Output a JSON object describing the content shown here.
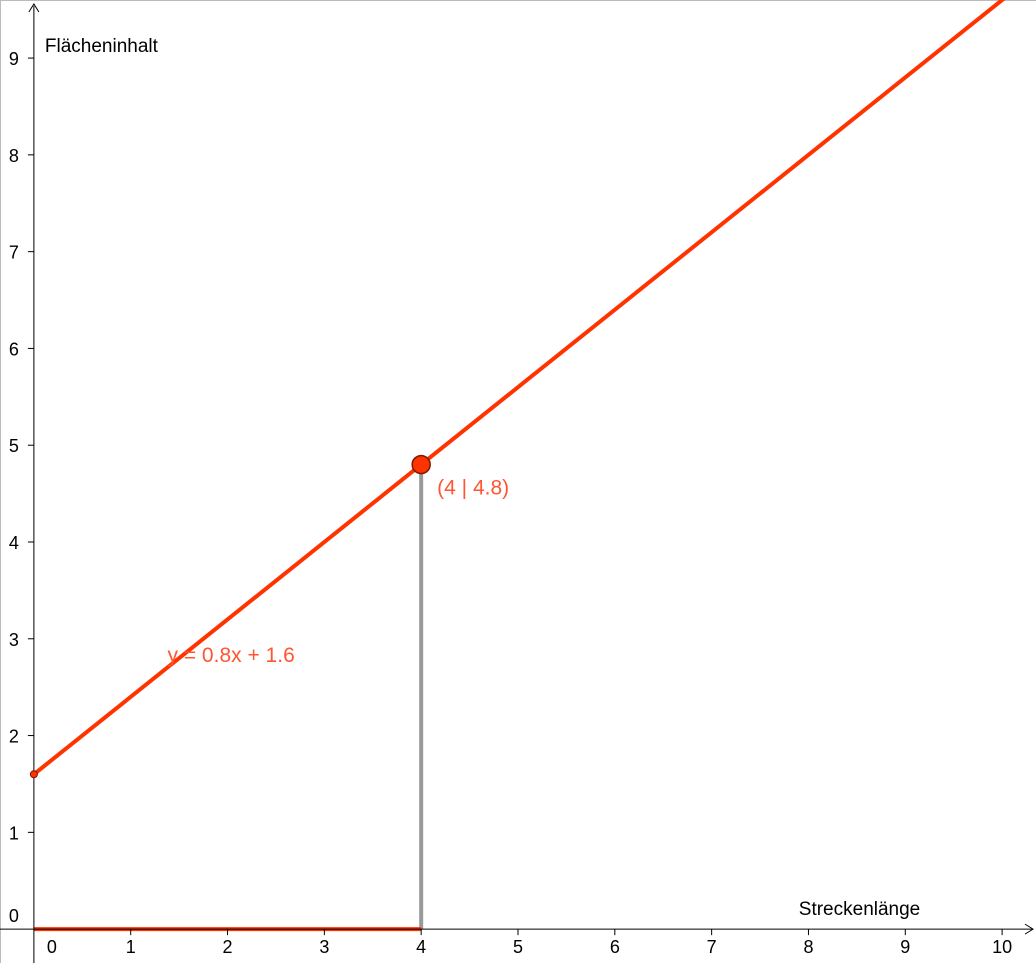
{
  "chart_data": {
    "type": "line",
    "xlabel": "Streckenlänge",
    "ylabel": "Flächeninhalt",
    "xlim": [
      -0.35,
      10.35
    ],
    "ylim": [
      -0.35,
      9.6
    ],
    "x_ticks": [
      0,
      1,
      2,
      3,
      4,
      5,
      6,
      7,
      8,
      9,
      10
    ],
    "y_ticks": [
      0,
      1,
      2,
      3,
      4,
      5,
      6,
      7,
      8,
      9
    ],
    "grid": false,
    "series": [
      {
        "equation_label": "y = 0.8x + 1.6",
        "slope": 0.8,
        "intercept": 1.6,
        "x_range": [
          0,
          10.35
        ],
        "color": "#ff3300"
      }
    ],
    "start_point": {
      "x": 0,
      "y": 1.6
    },
    "highlight_point": {
      "x": 4,
      "y": 4.8,
      "label": "(4 | 4.8)"
    },
    "vertical_segment": {
      "x": 4,
      "y_from": 0,
      "y_to": 4.8,
      "color": "#999999"
    },
    "horizontal_segment": {
      "x_from": 0,
      "x_to": 4,
      "y": 0,
      "color": "#ff3300"
    },
    "colors": {
      "line": "#ff3300",
      "label": "#ff5533",
      "point_fill": "#ff3300",
      "point_stroke": "#7a1a00",
      "segment": "#999999",
      "axis": "#000000"
    }
  }
}
